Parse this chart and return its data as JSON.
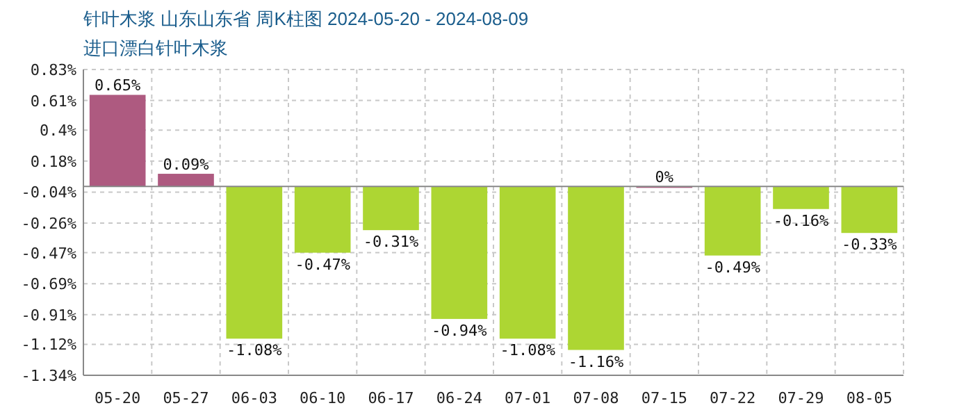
{
  "chart_data": {
    "type": "bar",
    "title": "针叶木浆 山东山东省 周K柱图 2024-05-20 - 2024-08-09",
    "subtitle": "进口漂白针叶木浆",
    "categories": [
      "05-20",
      "05-27",
      "06-03",
      "06-10",
      "06-17",
      "06-24",
      "07-01",
      "07-08",
      "07-15",
      "07-22",
      "07-29",
      "08-05"
    ],
    "values": [
      0.65,
      0.09,
      -1.08,
      -0.47,
      -0.31,
      -0.94,
      -1.08,
      -1.16,
      0,
      -0.49,
      -0.16,
      -0.33
    ],
    "colors": [
      "#ae5a80",
      "#ae5a80",
      "#add633",
      "#add633",
      "#add633",
      "#add633",
      "#add633",
      "#add633",
      "#ae5a80",
      "#add633",
      "#add633",
      "#add633"
    ],
    "value_labels": [
      "0.65%",
      "0.09%",
      "-1.08%",
      "-0.47%",
      "-0.31%",
      "-0.94%",
      "-1.08%",
      "-1.16%",
      "0%",
      "-0.49%",
      "-0.16%",
      "-0.33%"
    ],
    "ylim": [
      -1.34,
      0.83
    ],
    "yticks": [
      {
        "value": -1.34,
        "label": "-1.34%"
      },
      {
        "value": -1.12,
        "label": "-1.12%"
      },
      {
        "value": -0.91,
        "label": "-0.91%"
      },
      {
        "value": -0.69,
        "label": "-0.69%"
      },
      {
        "value": -0.47,
        "label": "-0.47%"
      },
      {
        "value": -0.26,
        "label": "-0.26%"
      },
      {
        "value": -0.04,
        "label": "-0.04%"
      },
      {
        "value": 0.18,
        "label": "0.18%"
      },
      {
        "value": 0.4,
        "label": "0.4%"
      },
      {
        "value": 0.61,
        "label": "0.61%"
      },
      {
        "value": 0.83,
        "label": "0.83%"
      }
    ],
    "grid": true
  }
}
